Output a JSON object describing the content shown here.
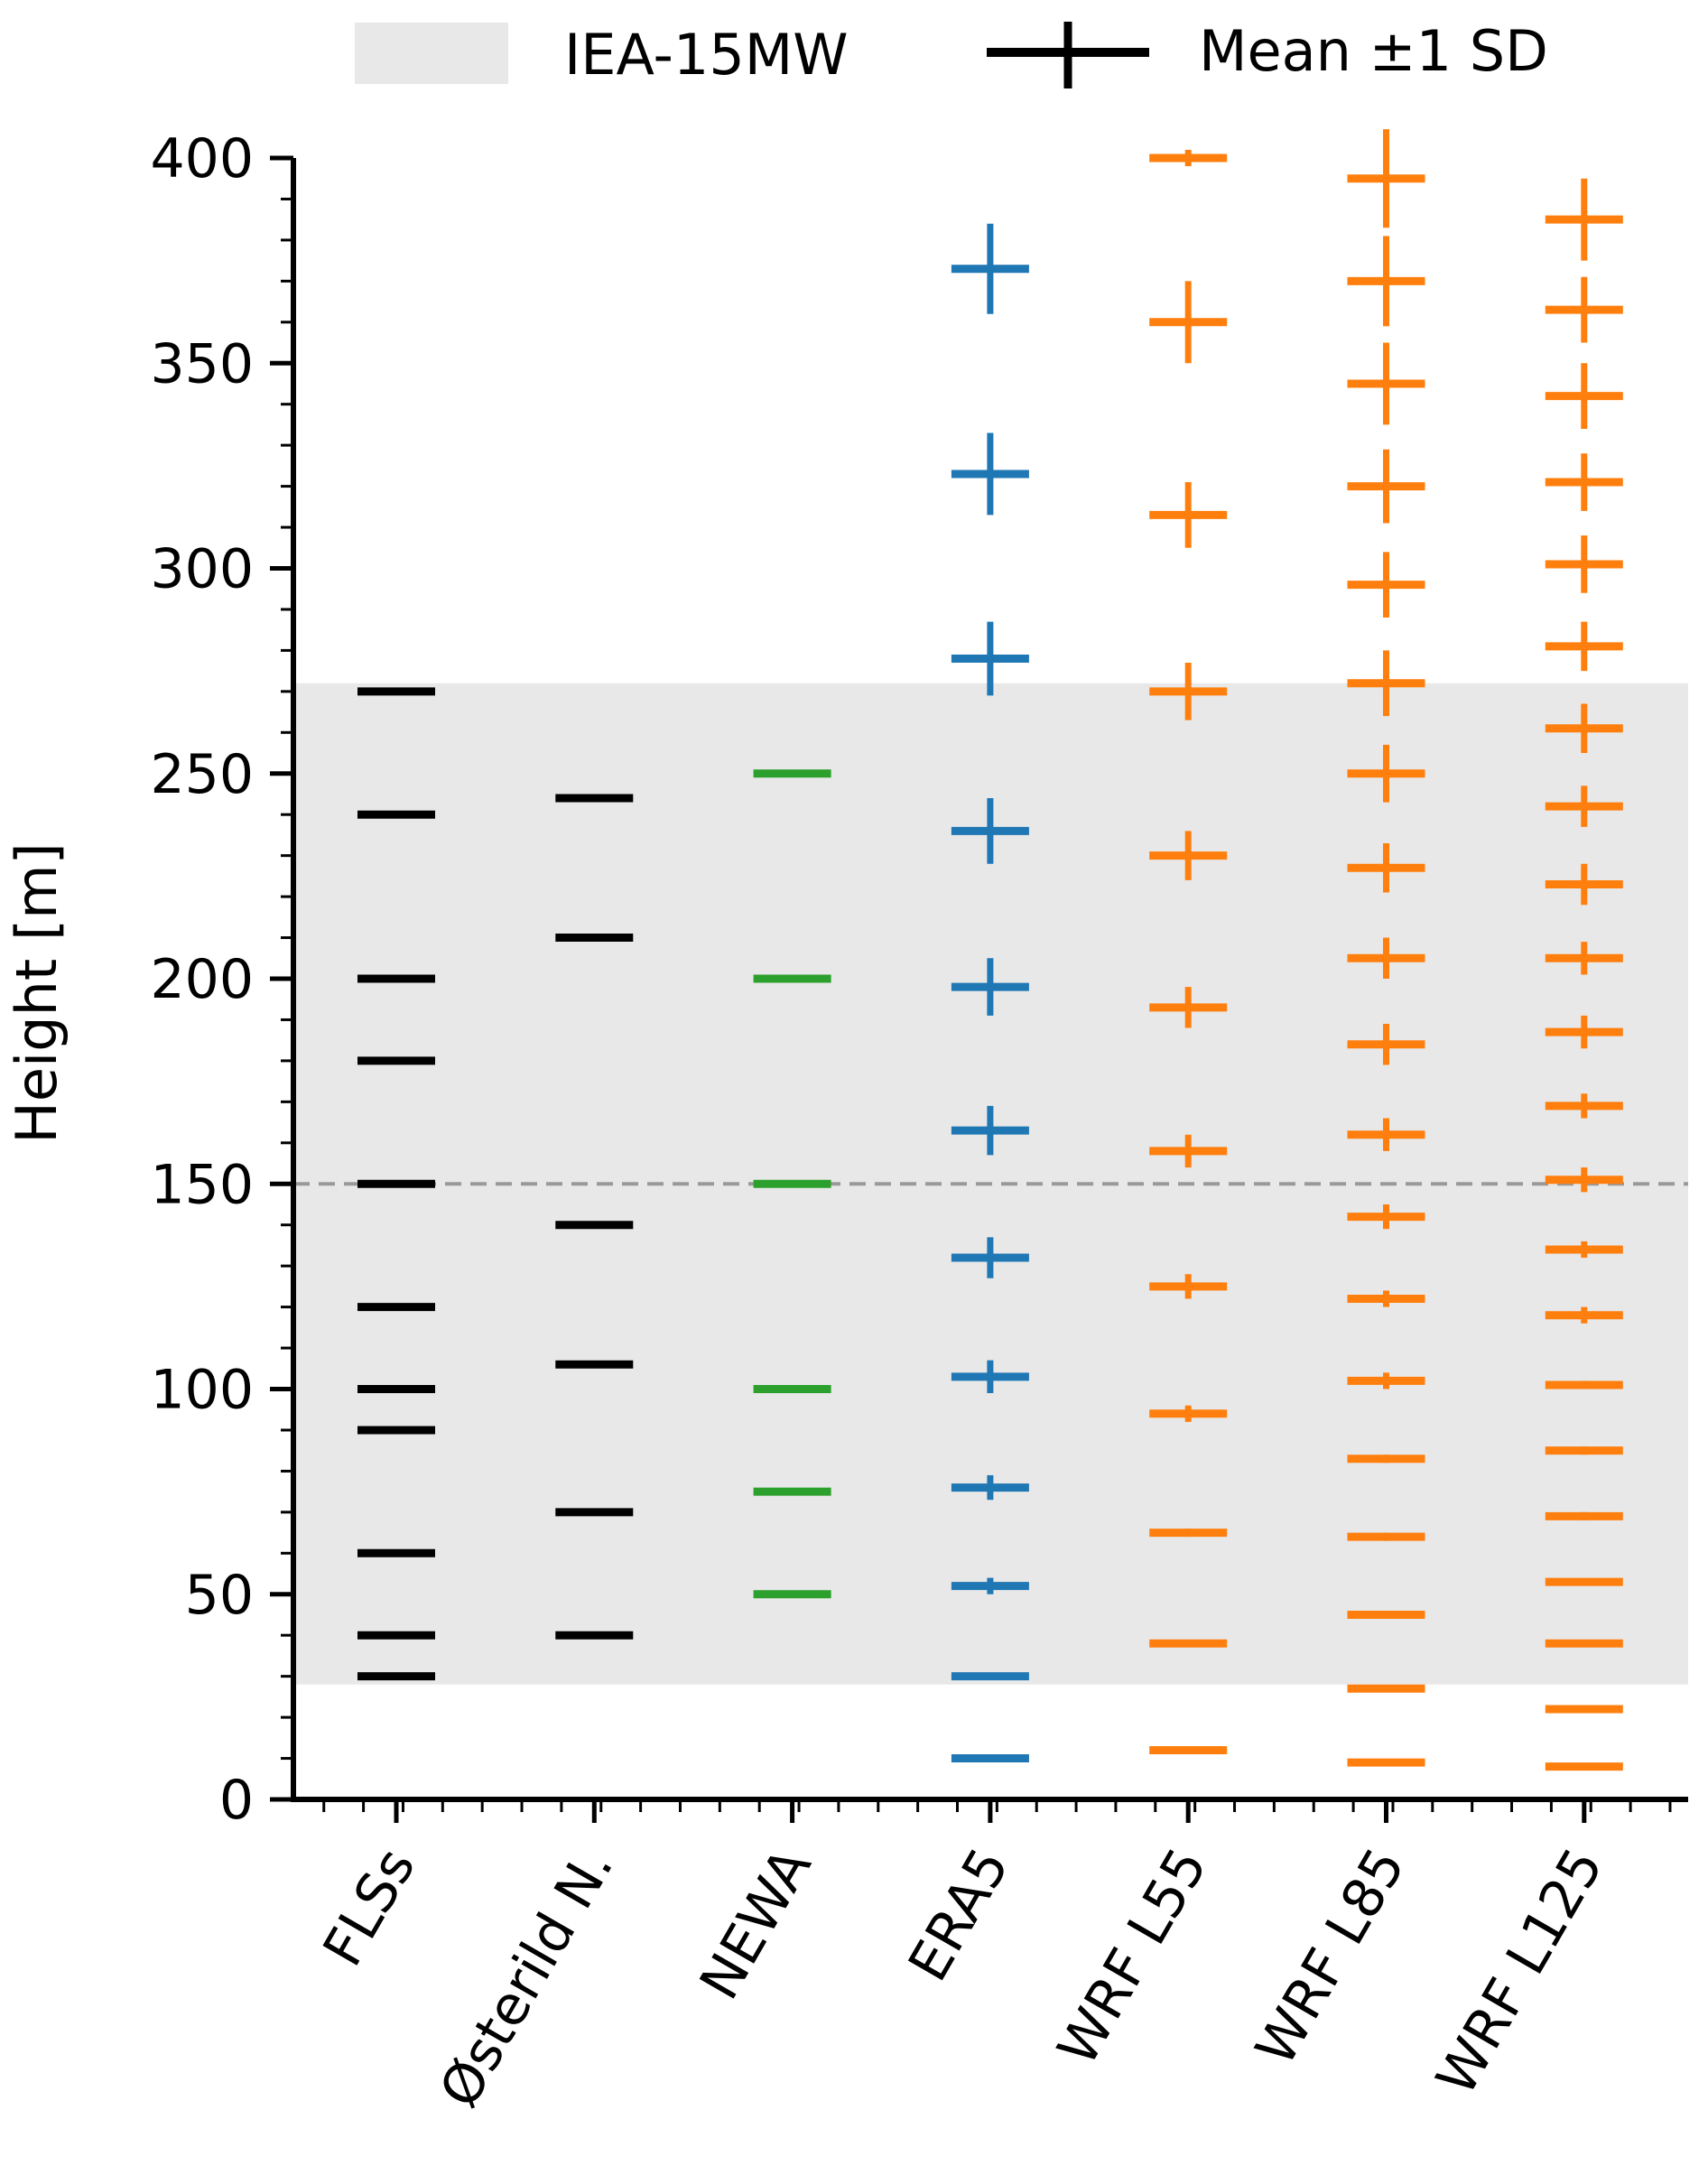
{
  "chart_data": {
    "type": "scatter",
    "ylabel": "Height [m]",
    "ylim": [
      0,
      400
    ],
    "yticks": [
      0,
      50,
      100,
      150,
      200,
      250,
      300,
      350,
      400
    ],
    "categories": [
      "FLSs",
      "Østerild N.",
      "NEWA",
      "ERA5",
      "WRF L55",
      "WRF L85",
      "WRF L125"
    ],
    "reference_line": {
      "y": 150,
      "color": "#999999",
      "style": "dashed"
    },
    "shaded_band": {
      "label": "IEA-15MW",
      "y_range": [
        28,
        272
      ],
      "color": "#e8e8e8"
    },
    "legend": {
      "position": "top",
      "entries": [
        {
          "label": "IEA-15MW",
          "kind": "band"
        },
        {
          "label": "Mean ±1 SD",
          "kind": "errorbar"
        }
      ]
    },
    "series": [
      {
        "category": "FLSs",
        "color": "#000000",
        "points": [
          [
            30,
            0
          ],
          [
            40,
            0
          ],
          [
            60,
            0
          ],
          [
            90,
            0
          ],
          [
            100,
            0
          ],
          [
            120,
            0
          ],
          [
            150,
            0
          ],
          [
            180,
            0
          ],
          [
            200,
            0
          ],
          [
            240,
            0
          ],
          [
            270,
            0
          ]
        ]
      },
      {
        "category": "Østerild N.",
        "color": "#000000",
        "points": [
          [
            40,
            0
          ],
          [
            70,
            0
          ],
          [
            106,
            0
          ],
          [
            140,
            0
          ],
          [
            210,
            0
          ],
          [
            244,
            0
          ]
        ]
      },
      {
        "category": "NEWA",
        "color": "#2ca02c",
        "points": [
          [
            50,
            0
          ],
          [
            75,
            0
          ],
          [
            100,
            0
          ],
          [
            150,
            0
          ],
          [
            200,
            0
          ],
          [
            250,
            0
          ]
        ]
      },
      {
        "category": "ERA5",
        "color": "#1f77b4",
        "points": [
          [
            10,
            0
          ],
          [
            30,
            0
          ],
          [
            52,
            2
          ],
          [
            76,
            3
          ],
          [
            103,
            4
          ],
          [
            132,
            5
          ],
          [
            163,
            6
          ],
          [
            198,
            7
          ],
          [
            236,
            8
          ],
          [
            278,
            9
          ],
          [
            323,
            10
          ],
          [
            373,
            11
          ]
        ]
      },
      {
        "category": "WRF L55",
        "color": "#ff7f0e",
        "points": [
          [
            12,
            0
          ],
          [
            38,
            0
          ],
          [
            65,
            1
          ],
          [
            94,
            2
          ],
          [
            125,
            3
          ],
          [
            158,
            4
          ],
          [
            193,
            5
          ],
          [
            230,
            6
          ],
          [
            270,
            7
          ],
          [
            313,
            8
          ],
          [
            360,
            10
          ],
          [
            400,
            2
          ]
        ]
      },
      {
        "category": "WRF L85",
        "color": "#ff7f0e",
        "points": [
          [
            9,
            0
          ],
          [
            27,
            0
          ],
          [
            45,
            0
          ],
          [
            64,
            1
          ],
          [
            83,
            1
          ],
          [
            102,
            2
          ],
          [
            122,
            2
          ],
          [
            142,
            3
          ],
          [
            162,
            4
          ],
          [
            184,
            5
          ],
          [
            205,
            5
          ],
          [
            227,
            6
          ],
          [
            250,
            7
          ],
          [
            272,
            8
          ],
          [
            296,
            8
          ],
          [
            320,
            9
          ],
          [
            345,
            10
          ],
          [
            370,
            11
          ],
          [
            395,
            12
          ]
        ]
      },
      {
        "category": "WRF L125",
        "color": "#ff7f0e",
        "points": [
          [
            8,
            0
          ],
          [
            22,
            0
          ],
          [
            38,
            0
          ],
          [
            53,
            0
          ],
          [
            69,
            1
          ],
          [
            85,
            1
          ],
          [
            101,
            1
          ],
          [
            118,
            2
          ],
          [
            134,
            2
          ],
          [
            151,
            3
          ],
          [
            169,
            3
          ],
          [
            187,
            4
          ],
          [
            205,
            4
          ],
          [
            223,
            5
          ],
          [
            242,
            5
          ],
          [
            261,
            6
          ],
          [
            281,
            6
          ],
          [
            301,
            7
          ],
          [
            321,
            7
          ],
          [
            342,
            8
          ],
          [
            363,
            8
          ],
          [
            385,
            10
          ]
        ]
      }
    ]
  }
}
